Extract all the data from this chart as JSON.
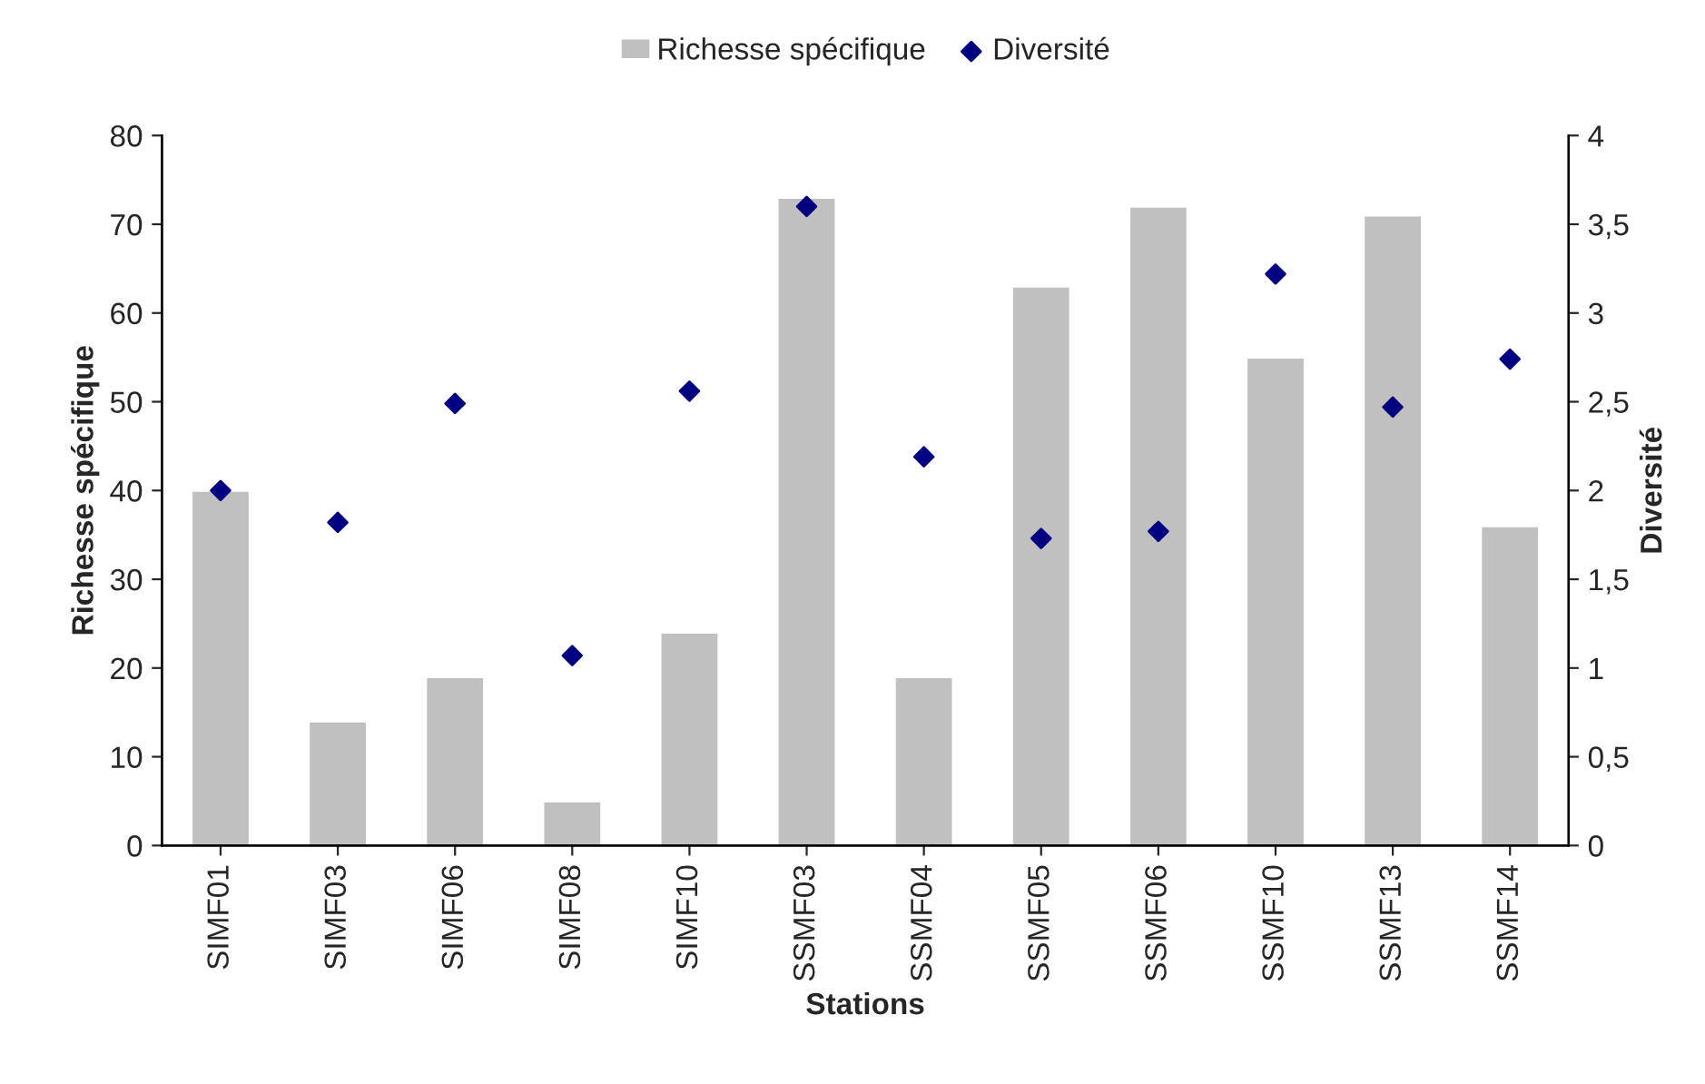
{
  "chart_data": {
    "type": "bar",
    "xlabel": "Stations",
    "ylabel": "Richesse spécifique",
    "y2label": "Diversité",
    "categories": [
      "SIMF01",
      "SIMF03",
      "SIMF06",
      "SIMF08",
      "SIMF10",
      "SSMF03",
      "SSMF04",
      "SSMF05",
      "SSMF06",
      "SSMF10",
      "SSMF13",
      "SSMF14"
    ],
    "series": [
      {
        "name": "Richesse spécifique",
        "color": "#c0c0c0",
        "values": [
          40,
          14,
          19,
          5,
          24,
          73,
          19,
          63,
          72,
          55,
          71,
          36
        ]
      },
      {
        "name": "Diversité",
        "type": "scatter",
        "axis": "y2",
        "color": "#000080",
        "marker": "diamond",
        "values": [
          2.0,
          1.82,
          2.49,
          1.07,
          2.56,
          3.6,
          2.19,
          1.73,
          1.77,
          3.22,
          2.47,
          2.74
        ]
      }
    ],
    "ylim": [
      0,
      80
    ],
    "yticks": [
      0,
      10,
      20,
      30,
      40,
      50,
      60,
      70,
      80
    ],
    "y2lim": [
      0,
      4
    ],
    "y2ticks": [
      0,
      {
        "value": 0.5,
        "label": "0,5"
      },
      1,
      {
        "value": 1.5,
        "label": "1,5"
      },
      2,
      {
        "value": 2.5,
        "label": "2,5"
      },
      3,
      {
        "value": 3.5,
        "label": "3,5"
      },
      4
    ],
    "legend": "top",
    "grid": false
  }
}
